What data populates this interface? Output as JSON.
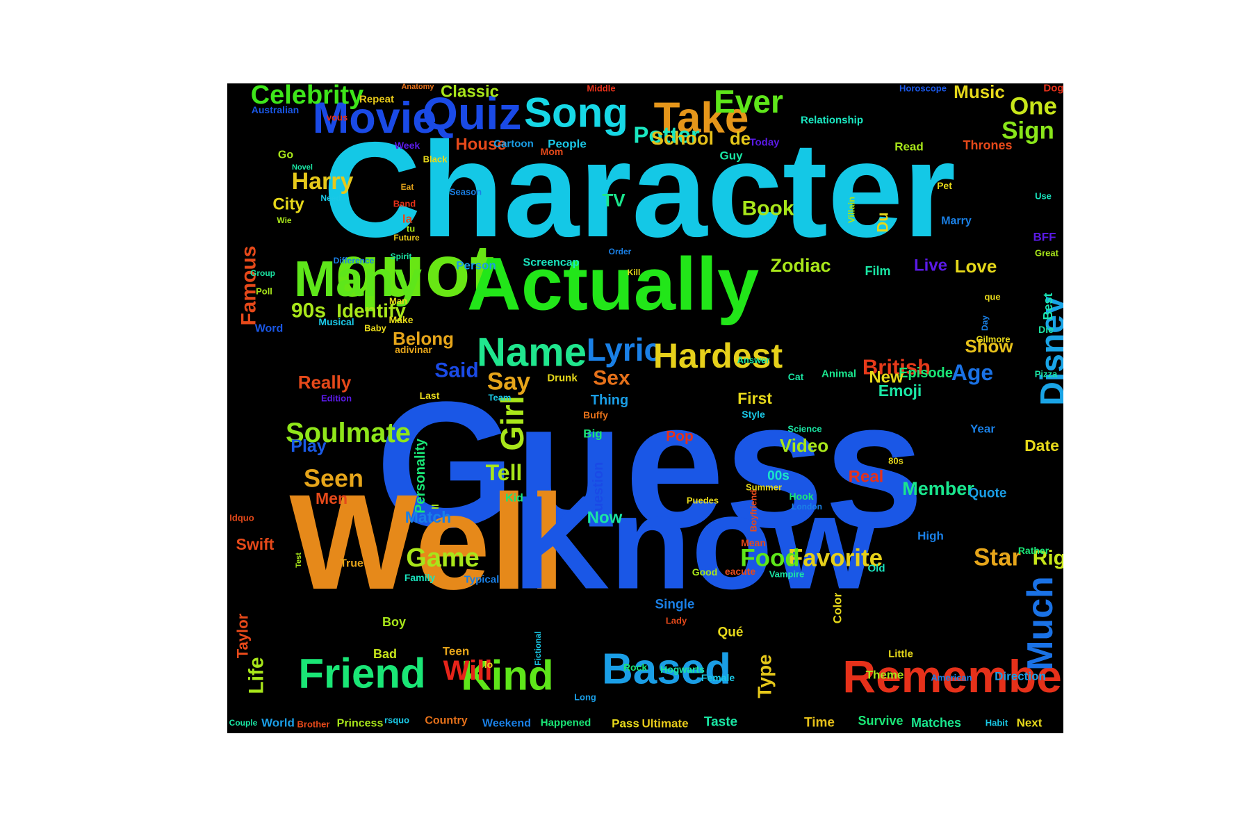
{
  "word_cloud": {
    "background": "#000000",
    "words": [
      {
        "text": "Guess",
        "color": "#1a57e6"
      },
      {
        "text": "Character",
        "color": "#14c8e6"
      },
      {
        "text": "Well",
        "color": "#e6891a"
      },
      {
        "text": "Know",
        "color": "#1a57e6"
      },
      {
        "text": "quot",
        "color": "#68e614"
      },
      {
        "text": "Actually",
        "color": "#22e619"
      },
      {
        "text": "Many",
        "color": "#5ee61a"
      },
      {
        "text": "Movie",
        "color": "#1a4ae6"
      },
      {
        "text": "Quiz",
        "color": "#1a4ae6"
      },
      {
        "text": "Song",
        "color": "#17d8e6"
      },
      {
        "text": "Take",
        "color": "#e6961a"
      },
      {
        "text": "Name",
        "color": "#20e68e"
      },
      {
        "text": "Lyric",
        "color": "#1a80e6"
      },
      {
        "text": "Hardest",
        "color": "#e6d01a"
      },
      {
        "text": "Disney",
        "color": "#1aa4e6"
      },
      {
        "text": "Remember",
        "color": "#e6311a"
      },
      {
        "text": "Based",
        "color": "#1a9ee6"
      },
      {
        "text": "Friend",
        "color": "#1ae676"
      },
      {
        "text": "Kind",
        "color": "#5ee61a"
      },
      {
        "text": "Much",
        "color": "#1a72e6"
      },
      {
        "text": "Soulmate",
        "color": "#8fe61a"
      },
      {
        "text": "Celebrity",
        "color": "#3ee61a"
      },
      {
        "text": "Ever",
        "color": "#5ee61a"
      },
      {
        "text": "One",
        "color": "#c8e61a"
      },
      {
        "text": "Sign",
        "color": "#89e61a"
      },
      {
        "text": "Potter",
        "color": "#1ae6c0"
      },
      {
        "text": "Harry",
        "color": "#e6c81a"
      },
      {
        "text": "90s",
        "color": "#a8e61a"
      },
      {
        "text": "Identify",
        "color": "#a8e61a"
      },
      {
        "text": "Game",
        "color": "#a8e61a"
      },
      {
        "text": "Favorite",
        "color": "#e6d01a"
      },
      {
        "text": "Food",
        "color": "#5ee61a"
      },
      {
        "text": "Star",
        "color": "#e6a51a"
      },
      {
        "text": "Right",
        "color": "#c8e61a"
      },
      {
        "text": "Girl",
        "color": "#a8e61a"
      },
      {
        "text": "Tell",
        "color": "#a8e61a"
      },
      {
        "text": "Seen",
        "color": "#e6a51a"
      },
      {
        "text": "Say",
        "color": "#e6a51a"
      },
      {
        "text": "Said",
        "color": "#1a4ae6"
      },
      {
        "text": "Sex",
        "color": "#e6711a"
      },
      {
        "text": "British",
        "color": "#e63a1a"
      },
      {
        "text": "Age",
        "color": "#1a72e6"
      },
      {
        "text": "Book",
        "color": "#a8e61a"
      },
      {
        "text": "Zodiac",
        "color": "#a8e61a"
      },
      {
        "text": "Love",
        "color": "#e6d81a"
      },
      {
        "text": "Famous",
        "color": "#e6491a"
      },
      {
        "text": "Will",
        "color": "#e6241a"
      },
      {
        "text": "Type",
        "color": "#e6c81a"
      },
      {
        "text": "Life",
        "color": "#a8e61a"
      },
      {
        "text": "Really",
        "color": "#e6491a"
      },
      {
        "text": "Belong",
        "color": "#e6a51a"
      },
      {
        "text": "Video",
        "color": "#a8e61a"
      },
      {
        "text": "Member",
        "color": "#1ae68e"
      },
      {
        "text": "Show",
        "color": "#e6c01a"
      },
      {
        "text": "Episode",
        "color": "#1ae676"
      },
      {
        "text": "School",
        "color": "#e6c01a"
      },
      {
        "text": "House",
        "color": "#e6491a"
      },
      {
        "text": "Music",
        "color": "#e6d81a"
      },
      {
        "text": "Classic",
        "color": "#a8e61a"
      },
      {
        "text": "Live",
        "color": "#5a1ae6"
      },
      {
        "text": "Personality",
        "color": "#1ae676"
      },
      {
        "text": "Question",
        "color": "#1a4ae6"
      },
      {
        "text": "Play",
        "color": "#1a5ae6"
      },
      {
        "text": "Match",
        "color": "#1a80e6"
      },
      {
        "text": "Men",
        "color": "#e6491a"
      },
      {
        "text": "Real",
        "color": "#e6311a"
      },
      {
        "text": "New",
        "color": "#e6d81a"
      },
      {
        "text": "First",
        "color": "#e6d81a"
      },
      {
        "text": "Emoji",
        "color": "#1ae6a4"
      },
      {
        "text": "Swift",
        "color": "#e6491a"
      },
      {
        "text": "Taylor",
        "color": "#e6491a"
      },
      {
        "text": "Thrones",
        "color": "#e6491a"
      },
      {
        "text": "de",
        "color": "#e6c81a"
      },
      {
        "text": "Du",
        "color": "#e6d81a"
      },
      {
        "text": "TV",
        "color": "#1ae68e"
      },
      {
        "text": "City",
        "color": "#e6d81a"
      },
      {
        "text": "Now",
        "color": "#1ae6a4"
      },
      {
        "text": "Date",
        "color": "#e6d81a"
      },
      {
        "text": "Pop",
        "color": "#e6311a"
      },
      {
        "text": "Quote",
        "color": "#1a9ee6"
      },
      {
        "text": "Single",
        "color": "#1a80e6"
      },
      {
        "text": "Thing",
        "color": "#1a9ee6"
      },
      {
        "text": "Film",
        "color": "#1ae6a4"
      },
      {
        "text": "Best",
        "color": "#1ae6b4"
      },
      {
        "text": "00s",
        "color": "#1ae6c8"
      },
      {
        "text": "Color",
        "color": "#e6d81a"
      },
      {
        "text": "Boy",
        "color": "#a8e61a"
      },
      {
        "text": "Bad",
        "color": "#c8e61a"
      },
      {
        "text": "Teen",
        "color": "#e6a51a"
      },
      {
        "text": "Time",
        "color": "#e6c01a"
      },
      {
        "text": "Pass",
        "color": "#e6d81a"
      },
      {
        "text": "Ultimate",
        "color": "#e6c81a"
      },
      {
        "text": "Taste",
        "color": "#1ae6a4"
      },
      {
        "text": "Survive",
        "color": "#1ae676"
      },
      {
        "text": "Matches",
        "color": "#1ae68e"
      },
      {
        "text": "Next",
        "color": "#e6d81a"
      },
      {
        "text": "Direction",
        "color": "#1a9ee6"
      },
      {
        "text": "Theme",
        "color": "#a8e61a"
      },
      {
        "text": "Country",
        "color": "#e6711a"
      },
      {
        "text": "Princess",
        "color": "#a8e61a"
      },
      {
        "text": "World",
        "color": "#1a9ee6"
      },
      {
        "text": "Weekend",
        "color": "#1a80e6"
      },
      {
        "text": "Happened",
        "color": "#1ae676"
      },
      {
        "text": "People",
        "color": "#1ac8e6"
      },
      {
        "text": "Guy",
        "color": "#1ae6a4"
      },
      {
        "text": "Person",
        "color": "#1a9ee6"
      },
      {
        "text": "Screencap",
        "color": "#1ae6c0"
      },
      {
        "text": "Kid",
        "color": "#1ae676"
      },
      {
        "text": "Big",
        "color": "#1ae676"
      },
      {
        "text": "Cat",
        "color": "#1ae6a4"
      },
      {
        "text": "Animal",
        "color": "#1ae68e"
      },
      {
        "text": "Drunk",
        "color": "#e6d81a"
      },
      {
        "text": "Last",
        "color": "#e6d81a"
      },
      {
        "text": "Style",
        "color": "#1ac8e6"
      },
      {
        "text": "Year",
        "color": "#1a80e6"
      },
      {
        "text": "High",
        "color": "#1a80e6"
      },
      {
        "text": "Rather",
        "color": "#1ae676"
      },
      {
        "text": "Old",
        "color": "#1ae6c0"
      },
      {
        "text": "Good",
        "color": "#a8e61a"
      },
      {
        "text": "Vampire",
        "color": "#1ae6a4"
      },
      {
        "text": "Mean",
        "color": "#e6491a"
      },
      {
        "text": "eacute",
        "color": "#e6491a"
      },
      {
        "text": "True",
        "color": "#e6a51a"
      },
      {
        "text": "Family",
        "color": "#1ae6c0"
      },
      {
        "text": "Typical",
        "color": "#1a80e6"
      },
      {
        "text": "Little",
        "color": "#e6d81a"
      },
      {
        "text": "American",
        "color": "#1a80e6"
      },
      {
        "text": "Habit",
        "color": "#1ac8e6"
      },
      {
        "text": "Couple",
        "color": "#1ae6a4"
      },
      {
        "text": "Brother",
        "color": "#e6491a"
      },
      {
        "text": "rsquo",
        "color": "#1ac8e6"
      },
      {
        "text": "Long",
        "color": "#1a9ee6"
      },
      {
        "text": "Rock",
        "color": "#1ae676"
      },
      {
        "text": "Hogwarts",
        "color": "#1ae6a4"
      },
      {
        "text": "Female",
        "color": "#1ac8e6"
      },
      {
        "text": "Lady",
        "color": "#e6491a"
      },
      {
        "text": "Qué",
        "color": "#e6d81a"
      },
      {
        "text": "Fictional",
        "color": "#1ac8e6"
      },
      {
        "text": "lo",
        "color": "#e6d81a"
      },
      {
        "text": "Test",
        "color": "#a8e61a"
      },
      {
        "text": "Idquo",
        "color": "#e6491a"
      },
      {
        "text": "Puedes",
        "color": "#e6d81a"
      },
      {
        "text": "Boyfriend",
        "color": "#e6491a"
      },
      {
        "text": "Hook",
        "color": "#1ae676"
      },
      {
        "text": "London",
        "color": "#1a80e6"
      },
      {
        "text": "Summer",
        "color": "#e6d81a"
      },
      {
        "text": "Science",
        "color": "#1ae6a4"
      },
      {
        "text": "80s",
        "color": "#e6d81a"
      },
      {
        "text": "Buffy",
        "color": "#e6711a"
      },
      {
        "text": "Team",
        "color": "#1ac8e6"
      },
      {
        "text": "Edition",
        "color": "#5a1ae6"
      },
      {
        "text": "adivinar",
        "color": "#e6a51a"
      },
      {
        "text": "Answer",
        "color": "#1ae6a4"
      },
      {
        "text": "Gilmore",
        "color": "#e6d81a"
      },
      {
        "text": "Day",
        "color": "#1a80e6"
      },
      {
        "text": "Die",
        "color": "#1ae6a4"
      },
      {
        "text": "Pizza",
        "color": "#1ae6a4"
      },
      {
        "text": "que",
        "color": "#e6d81a"
      },
      {
        "text": "Great",
        "color": "#a8e61a"
      },
      {
        "text": "BFF",
        "color": "#5a1ae6"
      },
      {
        "text": "Use",
        "color": "#1ae6c0"
      },
      {
        "text": "Marry",
        "color": "#1a80e6"
      },
      {
        "text": "Pet",
        "color": "#e6d81a"
      },
      {
        "text": "Villain",
        "color": "#a8e61a"
      },
      {
        "text": "Read",
        "color": "#a8e61a"
      },
      {
        "text": "Relationship",
        "color": "#1ae6c0"
      },
      {
        "text": "Horoscope",
        "color": "#1a57e6"
      },
      {
        "text": "Dog",
        "color": "#e6311a"
      },
      {
        "text": "Today",
        "color": "#5a1ae6"
      },
      {
        "text": "Mom",
        "color": "#e6491a"
      },
      {
        "text": "Cartoon",
        "color": "#1a9ee6"
      },
      {
        "text": "Black",
        "color": "#e6d81a"
      },
      {
        "text": "Season",
        "color": "#1a80e6"
      },
      {
        "text": "Eat",
        "color": "#e6a51a"
      },
      {
        "text": "Band",
        "color": "#e6311a"
      },
      {
        "text": "la",
        "color": "#e6491a"
      },
      {
        "text": "tu",
        "color": "#a8e61a"
      },
      {
        "text": "Future",
        "color": "#e6c81a"
      },
      {
        "text": "Spirit",
        "color": "#1ae6a4"
      },
      {
        "text": "Order",
        "color": "#1a80e6"
      },
      {
        "text": "Kill",
        "color": "#e6d81a"
      },
      {
        "text": "Week",
        "color": "#5a1ae6"
      },
      {
        "text": "Middle",
        "color": "#e6311a"
      },
      {
        "text": "Anatomy",
        "color": "#e6711a"
      },
      {
        "text": "Repeat",
        "color": "#e6c81a"
      },
      {
        "text": "vous",
        "color": "#e6311a"
      },
      {
        "text": "Australian",
        "color": "#1a57e6"
      },
      {
        "text": "Go",
        "color": "#a8e61a"
      },
      {
        "text": "Novel",
        "color": "#1ae6a4"
      },
      {
        "text": "Need",
        "color": "#1ac8e6"
      },
      {
        "text": "Wie",
        "color": "#a8e61a"
      },
      {
        "text": "Difference",
        "color": "#1a80e6"
      },
      {
        "text": "Group",
        "color": "#1ae6a4"
      },
      {
        "text": "Poll",
        "color": "#a8e61a"
      },
      {
        "text": "Word",
        "color": "#1a57e6"
      },
      {
        "text": "Musical",
        "color": "#1ac8e6"
      },
      {
        "text": "Baby",
        "color": "#e6d81a"
      },
      {
        "text": "Man",
        "color": "#e6d81a"
      },
      {
        "text": "Make",
        "color": "#e6d81a"
      },
      {
        "text": "ll",
        "color": "#a8e61a"
      }
    ]
  }
}
